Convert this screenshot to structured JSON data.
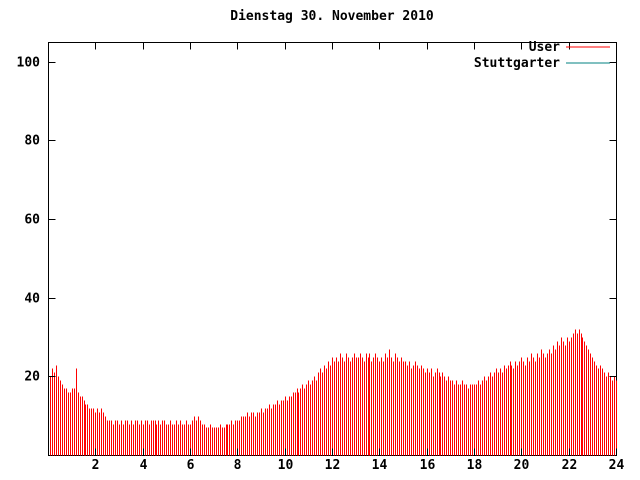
{
  "title": "Dienstag 30. November 2010",
  "legend": {
    "items": [
      {
        "label": "User",
        "color": "#ff0000"
      },
      {
        "label": "Stuttgarter",
        "color": "#008080"
      }
    ]
  },
  "chart_data": {
    "type": "bar",
    "style": "impulses",
    "title": "Dienstag 30. November 2010",
    "xlabel": "",
    "ylabel": "",
    "xlim": [
      0,
      24
    ],
    "ylim": [
      0,
      105
    ],
    "x_ticks": [
      2,
      4,
      6,
      8,
      10,
      12,
      14,
      16,
      18,
      20,
      22,
      24
    ],
    "y_ticks": [
      20,
      40,
      60,
      80,
      100
    ],
    "grid": false,
    "legend_position": "top-right",
    "x_unit": "hour-of-day",
    "sample_interval_hours": 0.0833,
    "series": [
      {
        "name": "User",
        "color": "#ff0000",
        "values": [
          20,
          22,
          21,
          23,
          20,
          19,
          18,
          17,
          17,
          16,
          16,
          17,
          17,
          22,
          16,
          15,
          15,
          14,
          13,
          13,
          12,
          12,
          12,
          11,
          12,
          11,
          12,
          11,
          10,
          9,
          9,
          9,
          8,
          9,
          9,
          8,
          9,
          8,
          9,
          9,
          8,
          9,
          8,
          9,
          9,
          8,
          9,
          8,
          9,
          9,
          8,
          9,
          9,
          9,
          8,
          9,
          8,
          9,
          9,
          8,
          8,
          9,
          8,
          8,
          9,
          8,
          9,
          8,
          8,
          9,
          8,
          8,
          9,
          10,
          9,
          10,
          9,
          8,
          8,
          7,
          7,
          8,
          7,
          7,
          7,
          7,
          8,
          7,
          7,
          8,
          8,
          8,
          9,
          8,
          9,
          9,
          9,
          10,
          10,
          10,
          11,
          10,
          11,
          11,
          10,
          11,
          11,
          12,
          11,
          12,
          12,
          13,
          12,
          13,
          13,
          14,
          13,
          14,
          14,
          15,
          14,
          15,
          15,
          16,
          16,
          17,
          16,
          17,
          18,
          17,
          18,
          19,
          18,
          19,
          20,
          19,
          21,
          22,
          21,
          23,
          22,
          24,
          23,
          25,
          24,
          25,
          24,
          26,
          25,
          24,
          26,
          25,
          24,
          25,
          26,
          25,
          25,
          26,
          25,
          24,
          26,
          25,
          26,
          24,
          25,
          26,
          25,
          24,
          25,
          24,
          26,
          25,
          27,
          25,
          24,
          26,
          25,
          24,
          25,
          24,
          24,
          23,
          24,
          22,
          23,
          24,
          23,
          22,
          23,
          22,
          21,
          22,
          21,
          22,
          20,
          21,
          22,
          21,
          20,
          21,
          20,
          19,
          20,
          19,
          19,
          18,
          19,
          18,
          18,
          19,
          18,
          18,
          17,
          18,
          18,
          18,
          18,
          19,
          18,
          19,
          20,
          19,
          20,
          21,
          20,
          21,
          22,
          21,
          22,
          21,
          23,
          22,
          23,
          24,
          23,
          22,
          24,
          23,
          24,
          25,
          24,
          23,
          25,
          24,
          26,
          25,
          24,
          26,
          25,
          27,
          26,
          25,
          26,
          27,
          26,
          28,
          27,
          29,
          28,
          30,
          29,
          28,
          30,
          29,
          30,
          31,
          32,
          31,
          32,
          31,
          30,
          29,
          28,
          27,
          26,
          25,
          24,
          23,
          22,
          23,
          22,
          21,
          20,
          21,
          20,
          19,
          20,
          19
        ]
      },
      {
        "name": "Stuttgarter",
        "color": "#008080",
        "values": []
      }
    ]
  }
}
